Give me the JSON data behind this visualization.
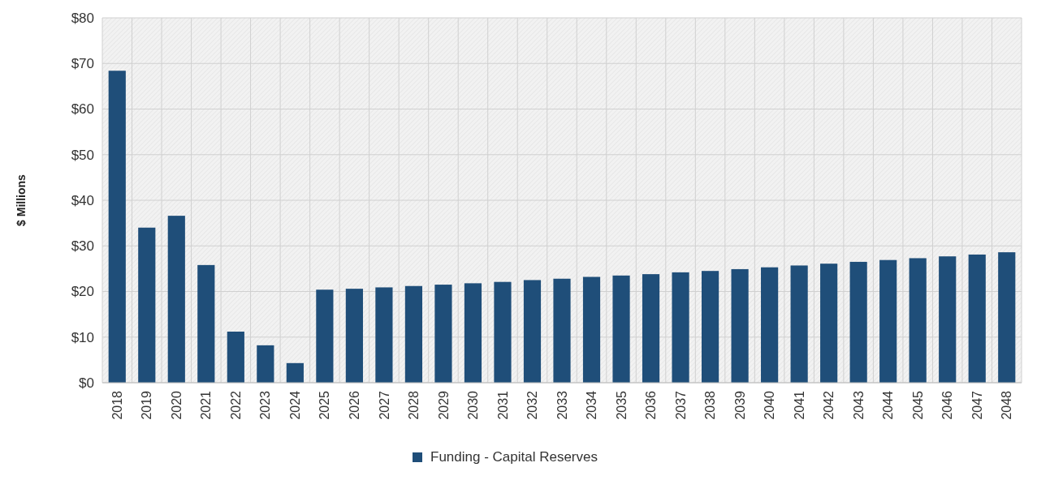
{
  "chart_data": {
    "type": "bar",
    "ylabel": "$ Millions",
    "categories": [
      "2018",
      "2019",
      "2020",
      "2021",
      "2022",
      "2023",
      "2024",
      "2025",
      "2026",
      "2027",
      "2028",
      "2029",
      "2030",
      "2031",
      "2032",
      "2033",
      "2034",
      "2035",
      "2036",
      "2037",
      "2038",
      "2039",
      "2040",
      "2041",
      "2042",
      "2043",
      "2044",
      "2045",
      "2046",
      "2047",
      "2048"
    ],
    "series": [
      {
        "name": "Funding - Capital Reserves",
        "color": "#1f4e79",
        "values": [
          68.4,
          34,
          36.6,
          25.8,
          11.2,
          8.2,
          4.3,
          20.4,
          20.6,
          20.9,
          21.2,
          21.5,
          21.8,
          22.1,
          22.5,
          22.8,
          23.2,
          23.5,
          23.8,
          24.2,
          24.5,
          24.9,
          25.3,
          25.7,
          26.1,
          26.5,
          26.9,
          27.3,
          27.7,
          28.1,
          28.6
        ]
      }
    ],
    "ylim": [
      0,
      80
    ],
    "yticks": [
      {
        "value": 0,
        "label": "$0"
      },
      {
        "value": 10,
        "label": "$10"
      },
      {
        "value": 20,
        "label": "$20"
      },
      {
        "value": 30,
        "label": "$30"
      },
      {
        "value": 40,
        "label": "$40"
      },
      {
        "value": 50,
        "label": "$50"
      },
      {
        "value": 60,
        "label": "$60"
      },
      {
        "value": 70,
        "label": "$70"
      },
      {
        "value": 80,
        "label": "$80"
      }
    ],
    "grid": true,
    "legend": "bottom"
  }
}
